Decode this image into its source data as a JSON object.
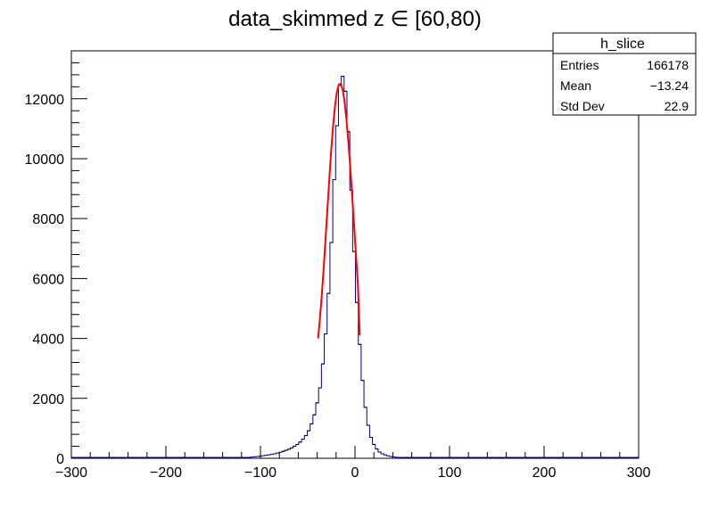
{
  "chart_data": {
    "type": "bar",
    "title": "data_skimmed z  ∈ [60,80)",
    "xlabel": "",
    "ylabel": "",
    "xlim": [
      -300,
      300
    ],
    "ylim": [
      0,
      13600
    ],
    "x_ticks": [
      -300,
      -200,
      -100,
      0,
      100,
      200,
      300
    ],
    "x_tick_labels": [
      "−300",
      "−200",
      "−100",
      "0",
      "100",
      "200",
      "300"
    ],
    "y_ticks": [
      0,
      2000,
      4000,
      6000,
      8000,
      10000,
      12000
    ],
    "y_tick_labels": [
      "0",
      "2000",
      "4000",
      "6000",
      "8000",
      "10000",
      "12000"
    ],
    "grid": false,
    "histogram": {
      "name": "h_slice",
      "color": "#000099",
      "bin_centers": [
        -130,
        -127,
        -124,
        -121,
        -118,
        -115,
        -112,
        -109,
        -106,
        -103,
        -100,
        -97,
        -94,
        -91,
        -88,
        -85,
        -82,
        -79,
        -76,
        -73,
        -70,
        -67,
        -64,
        -61,
        -58,
        -55,
        -52,
        -49,
        -46,
        -43,
        -40,
        -37,
        -34,
        -31,
        -28,
        -25,
        -22,
        -19,
        -16,
        -13,
        -10,
        -7,
        -4,
        -1,
        2,
        5,
        8,
        11,
        14,
        17,
        20,
        23,
        26,
        29,
        32,
        35,
        38,
        41,
        44,
        47,
        50,
        53,
        56,
        59,
        62,
        65,
        68,
        71,
        74,
        77,
        80,
        83,
        86,
        89,
        92,
        95,
        98,
        101,
        104,
        107,
        110
      ],
      "counts": [
        5,
        8,
        10,
        15,
        20,
        25,
        30,
        40,
        50,
        60,
        70,
        85,
        100,
        115,
        130,
        150,
        175,
        200,
        230,
        265,
        300,
        345,
        400,
        460,
        540,
        640,
        760,
        920,
        1150,
        1450,
        1850,
        2350,
        3150,
        4150,
        5500,
        7200,
        9300,
        11100,
        12450,
        12750,
        12250,
        10900,
        8950,
        6900,
        5200,
        3800,
        2600,
        1700,
        1100,
        700,
        460,
        310,
        210,
        150,
        110,
        80,
        60,
        45,
        35,
        26,
        20,
        15,
        12,
        9,
        7,
        5,
        4,
        3,
        2,
        2,
        1,
        1,
        1,
        1,
        1,
        0,
        0,
        0,
        0,
        0,
        0
      ]
    },
    "fit": {
      "color": "#ff0000",
      "x": [
        -39,
        -37,
        -35,
        -33,
        -31,
        -29,
        -27,
        -25,
        -23,
        -21,
        -19,
        -17,
        -15,
        -13,
        -11,
        -9,
        -7,
        -5,
        -3,
        -1,
        1,
        3,
        5
      ],
      "y": [
        4000,
        4700,
        5500,
        6400,
        7400,
        8400,
        9400,
        10350,
        11150,
        11800,
        12250,
        12480,
        12500,
        12300,
        11900,
        11300,
        10550,
        9700,
        8750,
        7800,
        6800,
        5850,
        4100
      ]
    }
  },
  "stats_box": {
    "title": "h_slice",
    "rows": [
      {
        "label": "Entries",
        "value": "166178"
      },
      {
        "label": "Mean",
        "value": "−13.24"
      },
      {
        "label": "Std Dev",
        "value": "22.9"
      }
    ]
  }
}
